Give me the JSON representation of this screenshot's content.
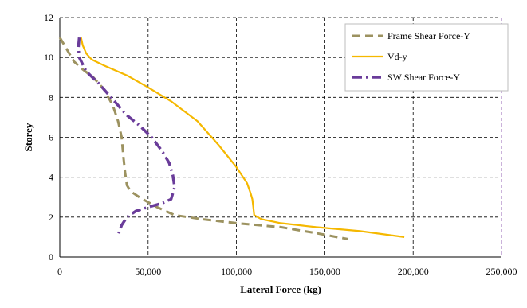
{
  "chart_data": {
    "type": "line",
    "title": "",
    "xlabel": "Lateral Force (kg)",
    "ylabel": "Storey",
    "xlim": [
      0,
      250000
    ],
    "ylim": [
      0,
      12
    ],
    "x_ticks": [
      0,
      50000,
      100000,
      150000,
      200000,
      250000
    ],
    "x_tick_labels": [
      "0",
      "50,000",
      "100,000",
      "150,000",
      "200,000",
      "250,000"
    ],
    "y_ticks": [
      0,
      2,
      4,
      6,
      8,
      10,
      12
    ],
    "y_tick_labels": [
      "0",
      "2",
      "4",
      "6",
      "8",
      "10",
      "12"
    ],
    "grid": true,
    "legend_position": "top-right",
    "series": [
      {
        "name": "Frame Shear Force-Y",
        "style": "dashed",
        "color": "#9c9260",
        "x": [
          0,
          4000,
          8000,
          13000,
          19000,
          25000,
          30000,
          33000,
          35000,
          36000,
          37000,
          38000,
          40000,
          45000,
          55000,
          65000,
          80000,
          100000,
          125000,
          145000,
          163000
        ],
        "y": [
          11,
          10.4,
          9.8,
          9.4,
          9.0,
          8.4,
          7.6,
          6.8,
          6.0,
          5.0,
          4.2,
          3.6,
          3.3,
          3.0,
          2.5,
          2.1,
          1.9,
          1.7,
          1.5,
          1.2,
          0.9
        ]
      },
      {
        "name": "Vd-y",
        "style": "solid",
        "color": "#f5b800",
        "x": [
          12000,
          13000,
          15000,
          18000,
          25000,
          38000,
          50000,
          63000,
          78000,
          90000,
          100000,
          106000,
          108000,
          109000,
          109500,
          110000,
          114000,
          125000,
          145000,
          170000,
          195000
        ],
        "y": [
          11,
          10.6,
          10.2,
          9.9,
          9.6,
          9.1,
          8.5,
          7.8,
          6.8,
          5.6,
          4.5,
          3.7,
          3.2,
          2.9,
          2.5,
          2.1,
          1.9,
          1.7,
          1.5,
          1.3,
          1.0
        ]
      },
      {
        "name": "SW Shear Force-Y",
        "style": "dashdot",
        "color": "#6a3c9a",
        "x": [
          11000,
          10500,
          11000,
          15000,
          22000,
          28000,
          33000,
          38000,
          45000,
          52000,
          58000,
          62000,
          64000,
          65000,
          63000,
          58000,
          50000,
          43000,
          38000,
          35000,
          33000
        ],
        "y": [
          11,
          10.5,
          10,
          9.3,
          8.7,
          8.1,
          7.6,
          7.1,
          6.6,
          6.0,
          5.3,
          4.7,
          4.1,
          3.5,
          2.9,
          2.7,
          2.5,
          2.3,
          2.0,
          1.6,
          1.1
        ]
      }
    ]
  }
}
